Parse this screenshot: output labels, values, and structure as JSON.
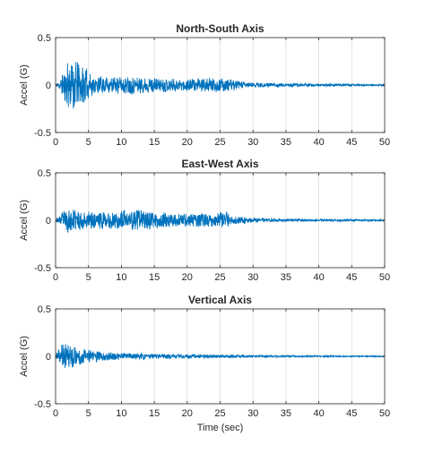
{
  "chart_data": [
    {
      "type": "line",
      "title": "North-South Axis",
      "xlabel": "",
      "ylabel": "Accel (G)",
      "xlim": [
        0,
        50
      ],
      "ylim": [
        -0.5,
        0.5
      ],
      "xticks": [
        0,
        5,
        10,
        15,
        20,
        25,
        30,
        35,
        40,
        45,
        50
      ],
      "yticks": [
        -0.5,
        0,
        0.5
      ],
      "grid": "vertical",
      "color": "#0072BD",
      "envelope": [
        [
          0,
          0.02
        ],
        [
          0.5,
          0.04
        ],
        [
          1,
          0.12
        ],
        [
          2,
          0.3
        ],
        [
          3,
          0.28
        ],
        [
          4,
          0.24
        ],
        [
          5,
          0.16
        ],
        [
          6,
          0.1
        ],
        [
          8,
          0.09
        ],
        [
          10,
          0.1
        ],
        [
          12,
          0.1
        ],
        [
          15,
          0.08
        ],
        [
          20,
          0.07
        ],
        [
          25,
          0.08
        ],
        [
          27,
          0.06
        ],
        [
          30,
          0.03
        ],
        [
          35,
          0.02
        ],
        [
          40,
          0.015
        ],
        [
          45,
          0.012
        ],
        [
          50,
          0.01
        ]
      ],
      "seed": 11
    },
    {
      "type": "line",
      "title": "East-West Axis",
      "xlabel": "",
      "ylabel": "Accel (G)",
      "xlim": [
        0,
        50
      ],
      "ylim": [
        -0.5,
        0.5
      ],
      "xticks": [
        0,
        5,
        10,
        15,
        20,
        25,
        30,
        35,
        40,
        45,
        50
      ],
      "yticks": [
        -0.5,
        0,
        0.5
      ],
      "grid": "vertical",
      "color": "#0072BD",
      "envelope": [
        [
          0,
          0.02
        ],
        [
          0.5,
          0.03
        ],
        [
          1,
          0.1
        ],
        [
          2,
          0.14
        ],
        [
          3,
          0.12
        ],
        [
          5,
          0.1
        ],
        [
          8,
          0.1
        ],
        [
          10,
          0.11
        ],
        [
          12,
          0.13
        ],
        [
          15,
          0.09
        ],
        [
          20,
          0.07
        ],
        [
          25,
          0.09
        ],
        [
          26,
          0.1
        ],
        [
          27,
          0.05
        ],
        [
          30,
          0.025
        ],
        [
          35,
          0.015
        ],
        [
          40,
          0.012
        ],
        [
          45,
          0.01
        ],
        [
          50,
          0.008
        ]
      ],
      "seed": 23
    },
    {
      "type": "line",
      "title": "Vertical Axis",
      "xlabel": "Time (sec)",
      "ylabel": "Accel (G)",
      "xlim": [
        0,
        50
      ],
      "ylim": [
        -0.5,
        0.5
      ],
      "xticks": [
        0,
        5,
        10,
        15,
        20,
        25,
        30,
        35,
        40,
        45,
        50
      ],
      "yticks": [
        -0.5,
        0,
        0.5
      ],
      "grid": "vertical",
      "color": "#0072BD",
      "envelope": [
        [
          0,
          0.03
        ],
        [
          0.5,
          0.08
        ],
        [
          1,
          0.16
        ],
        [
          2,
          0.14
        ],
        [
          3,
          0.12
        ],
        [
          5,
          0.07
        ],
        [
          8,
          0.05
        ],
        [
          10,
          0.04
        ],
        [
          15,
          0.03
        ],
        [
          20,
          0.025
        ],
        [
          25,
          0.02
        ],
        [
          30,
          0.012
        ],
        [
          35,
          0.01
        ],
        [
          40,
          0.008
        ],
        [
          45,
          0.007
        ],
        [
          50,
          0.006
        ]
      ],
      "seed": 37
    }
  ]
}
